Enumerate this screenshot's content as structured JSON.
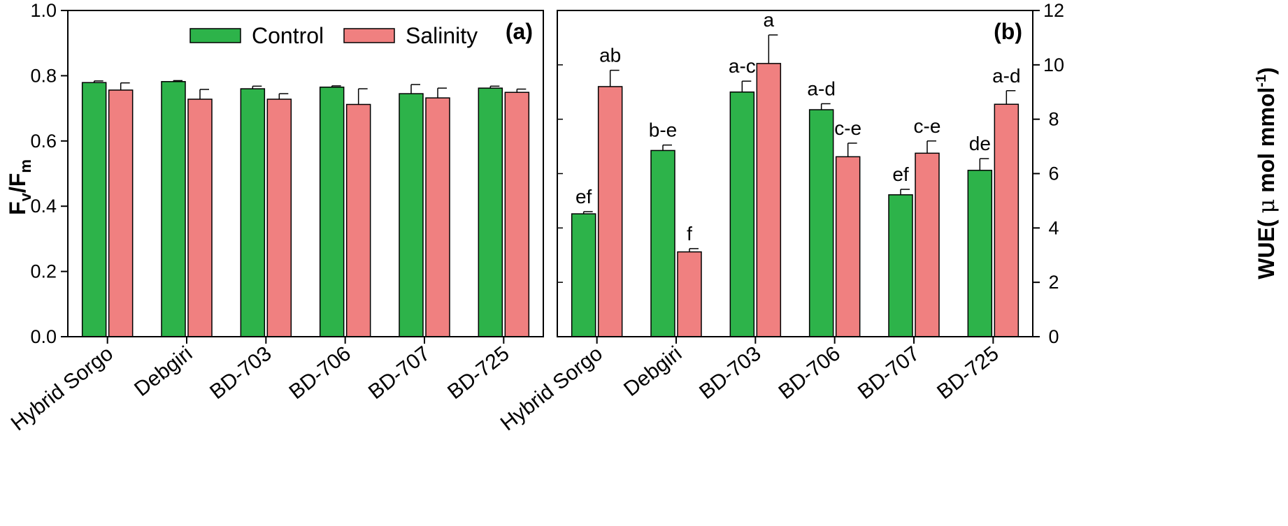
{
  "colors": {
    "control": "#2db34a",
    "salinity": "#f08080",
    "axis": "#000000"
  },
  "legend": {
    "control": "Control",
    "salinity": "Salinity"
  },
  "chart_data": [
    {
      "type": "bar",
      "panel_label": "(a)",
      "ylabel_main": "F",
      "ylabel_sub1": "v",
      "ylabel_slash": "/F",
      "ylabel_sub2": "m",
      "ylim": [
        0,
        1.0
      ],
      "yticks": [
        "0.0",
        "0.2",
        "0.4",
        "0.6",
        "0.8",
        "1.0"
      ],
      "ytick_values": [
        0,
        0.2,
        0.4,
        0.6,
        0.8,
        1.0
      ],
      "categories": [
        "Hybrid Sorgo",
        "Debgiri",
        "BD-703",
        "BD-706",
        "BD-707",
        "BD-725"
      ],
      "series": [
        {
          "name": "Control",
          "values": [
            0.779,
            0.782,
            0.76,
            0.765,
            0.745,
            0.762
          ],
          "errors": [
            0.005,
            0.003,
            0.008,
            0.004,
            0.028,
            0.006
          ]
        },
        {
          "name": "Salinity",
          "values": [
            0.756,
            0.728,
            0.728,
            0.712,
            0.732,
            0.749
          ],
          "errors": [
            0.022,
            0.03,
            0.017,
            0.048,
            0.03,
            0.01
          ]
        }
      ]
    },
    {
      "type": "bar",
      "panel_label": "(b)",
      "ylabel": "WUE",
      "ylabel_unit_pre": "( ",
      "ylabel_mu": "μ",
      "ylabel_unit_mid": " mol mmol",
      "ylabel_sup": "-1",
      "ylabel_unit_post": ")",
      "ylim": [
        0,
        12
      ],
      "yticks": [
        "0",
        "2",
        "4",
        "6",
        "8",
        "10",
        "12"
      ],
      "ytick_values": [
        0,
        2,
        4,
        6,
        8,
        10,
        12
      ],
      "categories": [
        "Hybrid Sorgo",
        "Debgiri",
        "BD-703",
        "BD-706",
        "BD-707",
        "BD-725"
      ],
      "series": [
        {
          "name": "Control",
          "values": [
            4.52,
            6.85,
            9.0,
            8.35,
            5.22,
            6.12
          ],
          "errors": [
            0.08,
            0.2,
            0.4,
            0.22,
            0.2,
            0.43
          ],
          "letters": [
            "ef",
            "b-e",
            "a-c",
            "a-d",
            "ef",
            "de"
          ]
        },
        {
          "name": "Salinity",
          "values": [
            9.2,
            3.12,
            10.05,
            6.62,
            6.75,
            8.55
          ],
          "errors": [
            0.6,
            0.12,
            1.05,
            0.5,
            0.45,
            0.5
          ],
          "letters": [
            "ab",
            "f",
            "a",
            "c-e",
            "c-e",
            "a-d"
          ]
        }
      ]
    }
  ]
}
